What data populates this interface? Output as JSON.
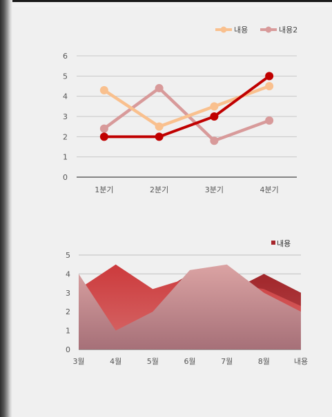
{
  "chart_data": [
    {
      "type": "line",
      "categories": [
        "1분기",
        "2분기",
        "3분기",
        "4분기"
      ],
      "ylim": [
        0,
        6
      ],
      "yticks": [
        0,
        1,
        2,
        3,
        4,
        5,
        6
      ],
      "grid": true,
      "legend": "top-right",
      "legend_entries": [
        "내용",
        "",
        "내용2"
      ],
      "series": [
        {
          "name": "내용",
          "color": "#f9c08e",
          "values": [
            4.3,
            2.5,
            3.5,
            4.5
          ]
        },
        {
          "name": "",
          "color": "#c00000",
          "values": [
            2.0,
            2.0,
            3.0,
            5.0
          ]
        },
        {
          "name": "내용2",
          "color": "#d89a9a",
          "values": [
            2.4,
            4.4,
            1.8,
            2.8
          ]
        }
      ]
    },
    {
      "type": "area",
      "categories": [
        "3월",
        "4월",
        "5월",
        "6월",
        "7월",
        "8월",
        "내용"
      ],
      "ylim": [
        0,
        5
      ],
      "yticks": [
        0,
        1,
        2,
        3,
        4,
        5
      ],
      "grid": true,
      "legend": "top-right",
      "legend_entries": [
        "내용"
      ],
      "series": [
        {
          "name": "",
          "color": "#a6262b",
          "values": [
            2.5,
            4.5,
            2.8,
            4.0,
            3.0,
            4.0,
            3.0
          ]
        },
        {
          "name": "내용",
          "color": "#d04040",
          "values": [
            3.2,
            4.5,
            3.2,
            3.8,
            3.5,
            3.2,
            2.3
          ]
        },
        {
          "name": "",
          "color": "#d9a3a3",
          "values": [
            4.0,
            1.0,
            2.0,
            4.2,
            4.5,
            3.0,
            2.0
          ]
        }
      ]
    }
  ]
}
